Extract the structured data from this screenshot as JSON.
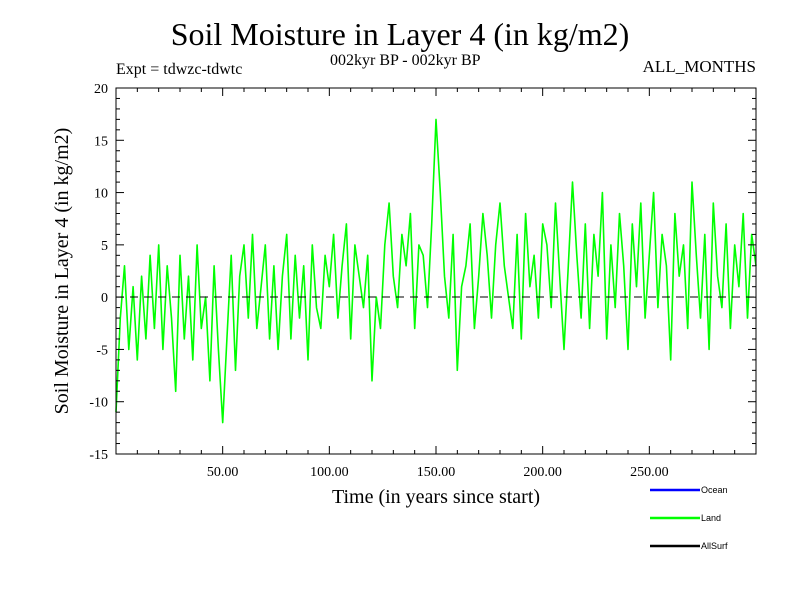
{
  "header": {
    "title": "Soil Moisture in Layer 4 (in kg/m2)",
    "subtitle": "002kyr BP - 002kyr BP",
    "expt": "Expt = tdwzc-tdwtc",
    "months": "ALL_MONTHS"
  },
  "chart_data": {
    "type": "line",
    "title": "Soil Moisture in Layer 4 (in kg/m2)",
    "xlabel": "Time (in years since start)",
    "ylabel": "Soil Moisture in Layer 4 (in kg/m2)",
    "xlim": [
      0,
      300
    ],
    "ylim": [
      -15,
      20
    ],
    "x_ticks": [
      50,
      100,
      150,
      200,
      250
    ],
    "x_tick_labels": [
      "50.00",
      "100.00",
      "150.00",
      "200.00",
      "250.00"
    ],
    "y_ticks": [
      -15,
      -10,
      -5,
      0,
      5,
      10,
      15,
      20
    ],
    "y_tick_labels": [
      "-15",
      "-10",
      "-5",
      "0",
      "5",
      "10",
      "15",
      "20"
    ],
    "zero_line": true,
    "grid": false,
    "legend_position": "bottom-right",
    "colors": {
      "Ocean": "#0000ff",
      "Land": "#00ff00",
      "AllSurf": "#000000"
    },
    "legend": [
      "Ocean",
      "Land",
      "AllSurf"
    ],
    "series": [
      {
        "name": "Land",
        "x": [
          0,
          2,
          4,
          6,
          8,
          10,
          12,
          14,
          16,
          18,
          20,
          22,
          24,
          26,
          28,
          30,
          32,
          34,
          36,
          38,
          40,
          42,
          44,
          46,
          48,
          50,
          52,
          54,
          56,
          58,
          60,
          62,
          64,
          66,
          68,
          70,
          72,
          74,
          76,
          78,
          80,
          82,
          84,
          86,
          88,
          90,
          92,
          94,
          96,
          98,
          100,
          102,
          104,
          106,
          108,
          110,
          112,
          114,
          116,
          118,
          120,
          122,
          124,
          126,
          128,
          130,
          132,
          134,
          136,
          138,
          140,
          142,
          144,
          146,
          148,
          150,
          152,
          154,
          156,
          158,
          160,
          162,
          164,
          166,
          168,
          170,
          172,
          174,
          176,
          178,
          180,
          182,
          184,
          186,
          188,
          190,
          192,
          194,
          196,
          198,
          200,
          202,
          204,
          206,
          208,
          210,
          212,
          214,
          216,
          218,
          220,
          222,
          224,
          226,
          228,
          230,
          232,
          234,
          236,
          238,
          240,
          242,
          244,
          246,
          248,
          250,
          252,
          254,
          256,
          258,
          260,
          262,
          264,
          266,
          268,
          270,
          272,
          274,
          276,
          278,
          280,
          282,
          284,
          286,
          288,
          290,
          292,
          294,
          296,
          298,
          300
        ],
        "values": [
          -11,
          -2,
          3,
          -5,
          1,
          -6,
          2,
          -4,
          4,
          -3,
          5,
          -5,
          3,
          -2,
          -9,
          4,
          -4,
          2,
          -6,
          5,
          -3,
          0,
          -8,
          3,
          -5,
          -12,
          -4,
          4,
          -7,
          2,
          5,
          -2,
          6,
          -3,
          1,
          5,
          -4,
          3,
          -5,
          2,
          6,
          -4,
          4,
          -2,
          3,
          -6,
          5,
          -1,
          -3,
          4,
          1,
          6,
          -2,
          3,
          7,
          -4,
          5,
          2,
          -1,
          4,
          -8,
          0,
          -3,
          5,
          9,
          2,
          -1,
          6,
          3,
          8,
          -3,
          5,
          4,
          -1,
          7,
          17,
          10,
          2,
          -2,
          6,
          -7,
          1,
          3,
          7,
          -3,
          2,
          8,
          4,
          -2,
          5,
          9,
          3,
          0,
          -3,
          6,
          -4,
          8,
          1,
          4,
          -2,
          7,
          5,
          -1,
          9,
          2,
          -5,
          3,
          11,
          4,
          -2,
          7,
          -3,
          6,
          2,
          10,
          -4,
          5,
          -1,
          8,
          3,
          -5,
          7,
          1,
          9,
          -2,
          4,
          10,
          -1,
          6,
          3,
          -6,
          8,
          2,
          5,
          -3,
          11,
          4,
          -2,
          6,
          -5,
          9,
          2,
          -1,
          7,
          -3,
          5,
          1,
          8,
          -2,
          6,
          3
        ]
      }
    ]
  }
}
